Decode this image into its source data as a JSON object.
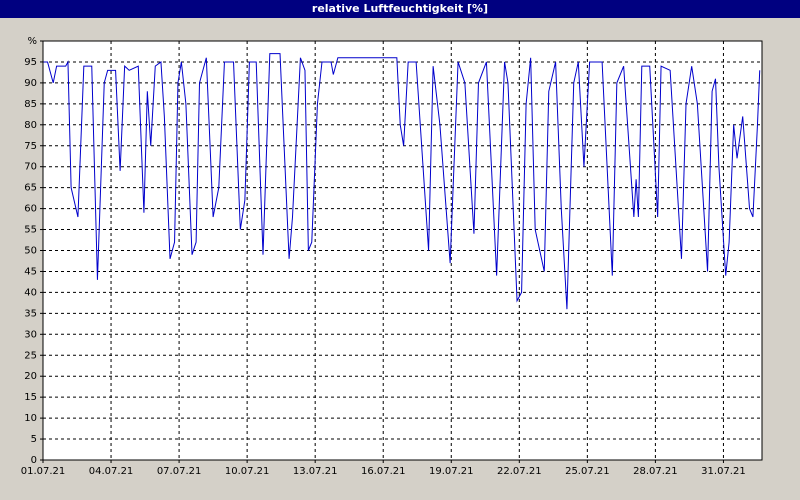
{
  "chart_data": {
    "type": "line",
    "title": "relative Luftfeuchtigkeit [%]",
    "x": [
      0,
      0.2,
      0.45,
      0.6,
      1.0,
      1.1,
      1.24,
      1.54,
      1.8,
      2.15,
      2.4,
      2.7,
      2.85,
      3.2,
      3.4,
      3.6,
      3.8,
      4.2,
      4.45,
      4.6,
      4.75,
      4.95,
      5.2,
      5.35,
      5.6,
      5.8,
      5.95,
      6.1,
      6.3,
      6.57,
      6.75,
      6.9,
      7.2,
      7.5,
      7.75,
      8.0,
      8.4,
      8.7,
      8.9,
      9.1,
      9.4,
      9.7,
      10.0,
      10.45,
      10.85,
      11.0,
      11.35,
      11.55,
      11.7,
      11.85,
      12.1,
      12.3,
      12.7,
      12.8,
      13.0,
      15.6,
      15.75,
      15.9,
      16.1,
      16.45,
      17.0,
      17.2,
      17.5,
      17.95,
      18.3,
      18.6,
      19.0,
      19.2,
      19.55,
      20.0,
      20.35,
      20.5,
      20.9,
      21.1,
      21.3,
      21.5,
      21.7,
      22.1,
      22.3,
      22.6,
      22.85,
      23.1,
      23.4,
      23.6,
      23.85,
      24.1,
      24.65,
      25.1,
      25.3,
      25.6,
      26.05,
      26.15,
      26.25,
      26.4,
      26.75,
      27.1,
      27.25,
      27.65,
      28.15,
      28.35,
      28.6,
      28.85,
      29.3,
      29.5,
      29.65,
      29.8,
      30.1,
      30.25,
      30.45,
      30.6,
      30.85,
      31.15,
      31.3,
      31.5,
      31.6
    ],
    "series": [
      {
        "color": "#0000cc",
        "values": [
          95,
          95,
          90,
          94,
          94,
          95,
          65,
          58,
          94,
          94,
          43,
          90,
          93,
          93,
          69,
          94,
          93,
          94,
          59,
          88,
          75,
          94,
          95,
          82,
          48,
          52,
          90,
          95,
          85,
          49,
          52,
          90,
          96,
          58,
          65,
          95,
          95,
          55,
          62,
          95,
          95,
          49,
          97,
          97,
          48,
          58,
          96,
          93,
          50,
          52,
          85,
          95,
          95,
          92,
          96,
          96,
          80,
          75,
          95,
          95,
          50,
          94,
          80,
          47,
          95,
          90,
          54,
          90,
          95,
          44,
          95,
          90,
          38,
          40,
          85,
          96,
          55,
          45,
          88,
          95,
          60,
          36,
          90,
          95,
          70,
          95,
          95,
          44,
          90,
          94,
          58,
          67,
          58,
          94,
          94,
          58,
          94,
          93,
          48,
          85,
          94,
          85,
          45,
          88,
          91,
          70,
          44,
          52,
          80,
          72,
          82,
          60,
          58,
          80,
          93
        ]
      }
    ],
    "xlim": [
      0,
      31.7
    ],
    "xticks": [
      {
        "value": 0,
        "label": "01.07.21"
      },
      {
        "value": 3,
        "label": "04.07.21"
      },
      {
        "value": 6,
        "label": "07.07.21"
      },
      {
        "value": 9,
        "label": "10.07.21"
      },
      {
        "value": 12,
        "label": "13.07.21"
      },
      {
        "value": 15,
        "label": "16.07.21"
      },
      {
        "value": 18,
        "label": "19.07.21"
      },
      {
        "value": 21,
        "label": "22.07.21"
      },
      {
        "value": 24,
        "label": "25.07.21"
      },
      {
        "value": 27,
        "label": "28.07.21"
      },
      {
        "value": 30,
        "label": "31.07.21"
      }
    ],
    "ylim": [
      0,
      100
    ],
    "yticks": [
      0,
      5,
      10,
      15,
      20,
      25,
      30,
      35,
      40,
      45,
      50,
      55,
      60,
      65,
      70,
      75,
      80,
      85,
      90,
      95,
      {
        "value": 100,
        "label": "%"
      }
    ],
    "grid": true
  }
}
